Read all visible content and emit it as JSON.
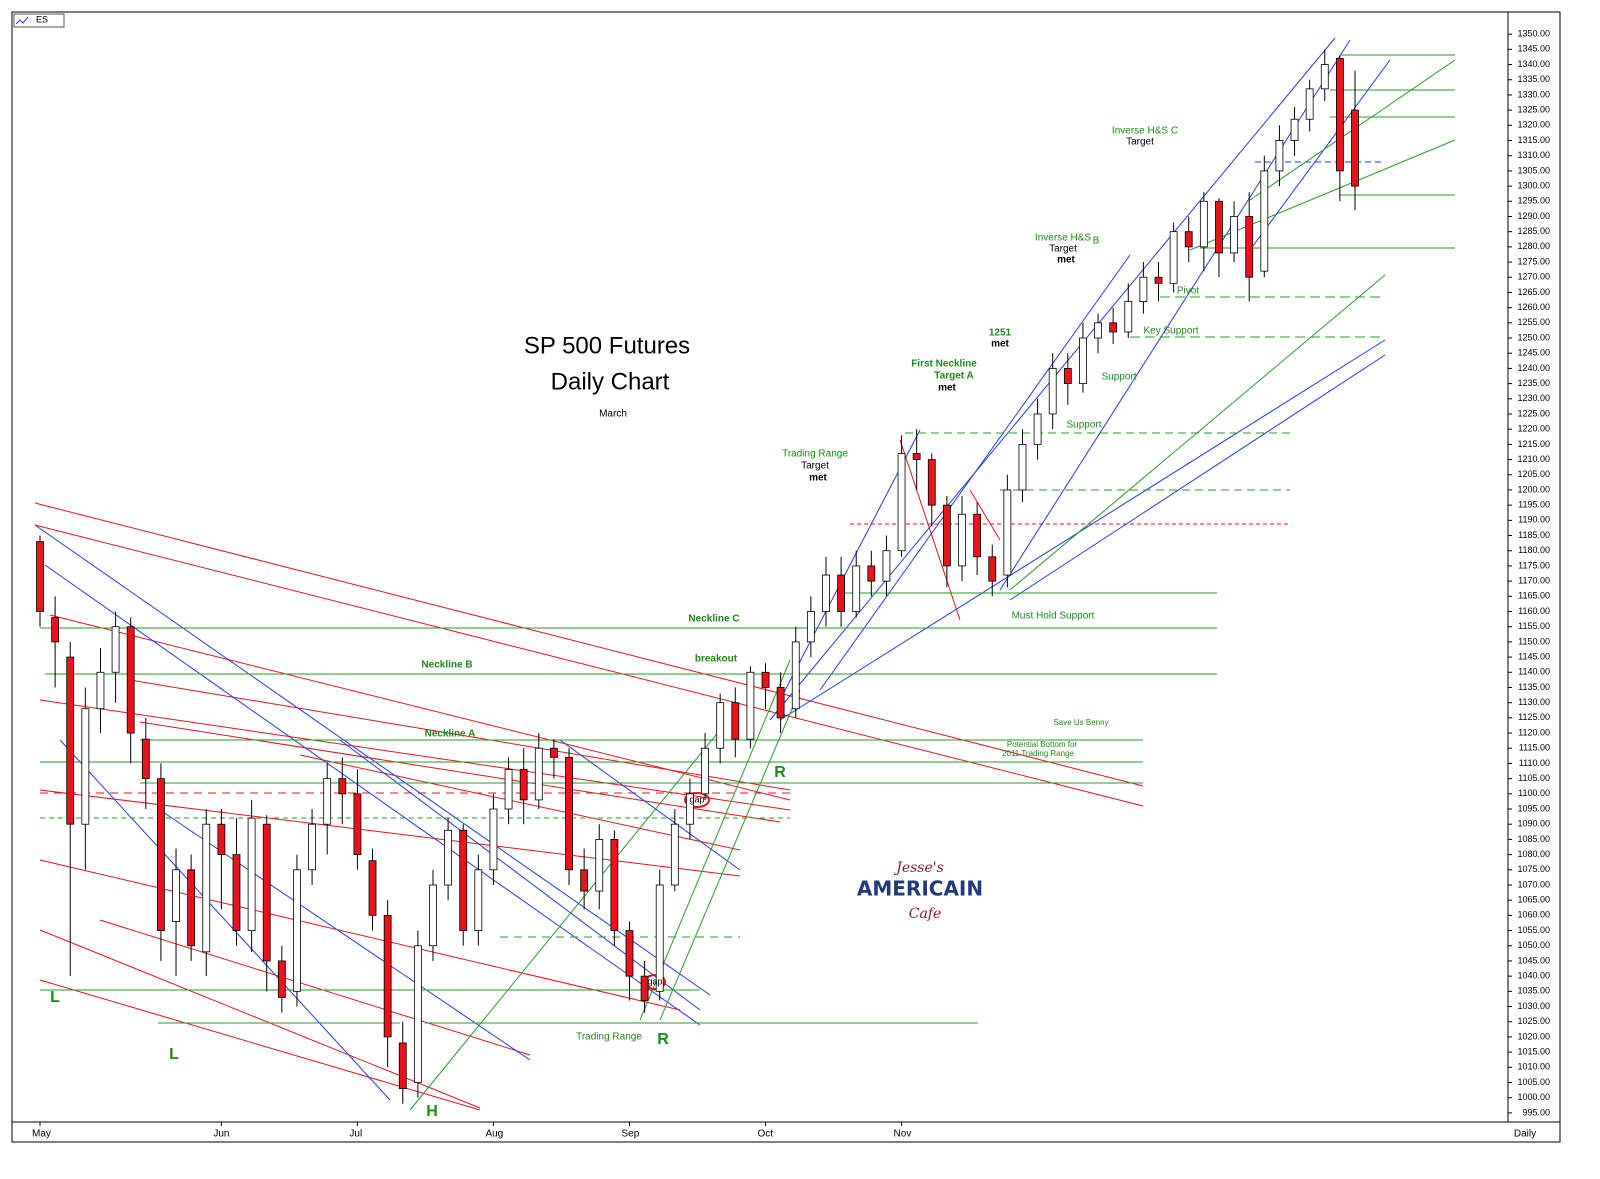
{
  "chart_data": {
    "type": "candlestick",
    "symbol": "ES",
    "period": "Daily",
    "title": "SP 500 Futures",
    "subtitle": "Daily Chart",
    "categories": [
      "May",
      null,
      null,
      null,
      null,
      null,
      null,
      null,
      null,
      null,
      null,
      null,
      "Jun",
      null,
      null,
      null,
      null,
      null,
      null,
      null,
      null,
      "Jul",
      null,
      null,
      null,
      null,
      null,
      null,
      null,
      null,
      "Aug",
      null,
      null,
      null,
      null,
      null,
      null,
      null,
      null,
      "Sep",
      null,
      null,
      null,
      null,
      null,
      null,
      null,
      null,
      "Oct",
      null,
      null,
      null,
      null,
      null,
      null,
      null,
      null,
      "Nov",
      null,
      null,
      null,
      null,
      null,
      null,
      null,
      null,
      null,
      null,
      null,
      null,
      null,
      null,
      null,
      null,
      null,
      null,
      null,
      null,
      null,
      null,
      null,
      null,
      null,
      null,
      null,
      null,
      null,
      null
    ],
    "open": [
      1183,
      1158,
      1145,
      1090,
      1128,
      1140,
      1155,
      1118,
      1105,
      1058,
      1075,
      1048,
      1090,
      1080,
      1055,
      1090,
      1045,
      1035,
      1075,
      1090,
      1105,
      1100,
      1078,
      1060,
      1018,
      1005,
      1050,
      1070,
      1088,
      1055,
      1075,
      1095,
      1108,
      1098,
      1115,
      1112,
      1075,
      1068,
      1085,
      1055,
      1040,
      1035,
      1070,
      1090,
      1100,
      1115,
      1130,
      1118,
      1140,
      1135,
      1128,
      1150,
      1160,
      1172,
      1160,
      1175,
      1170,
      1180,
      1212,
      1210,
      1195,
      1175,
      1192,
      1178,
      1172,
      1200,
      1215,
      1225,
      1240,
      1235,
      1250,
      1255,
      1252,
      1262,
      1270,
      1268,
      1285,
      1280,
      1295,
      1278,
      1290,
      1272,
      1305,
      1315,
      1322,
      1332,
      1342,
      1325
    ],
    "high": [
      1185,
      1165,
      1150,
      1135,
      1148,
      1160,
      1158,
      1125,
      1110,
      1082,
      1080,
      1095,
      1095,
      1092,
      1098,
      1093,
      1050,
      1080,
      1095,
      1110,
      1112,
      1108,
      1082,
      1065,
      1025,
      1055,
      1075,
      1092,
      1090,
      1080,
      1100,
      1112,
      1115,
      1120,
      1118,
      1115,
      1082,
      1090,
      1088,
      1058,
      1045,
      1075,
      1095,
      1105,
      1120,
      1133,
      1135,
      1142,
      1143,
      1140,
      1155,
      1165,
      1178,
      1178,
      1180,
      1180,
      1185,
      1218,
      1220,
      1212,
      1198,
      1198,
      1196,
      1182,
      1205,
      1220,
      1230,
      1245,
      1245,
      1255,
      1258,
      1260,
      1268,
      1275,
      1275,
      1288,
      1290,
      1298,
      1296,
      1295,
      1298,
      1310,
      1320,
      1326,
      1335,
      1345,
      1343,
      1338
    ],
    "low": [
      1155,
      1135,
      1040,
      1075,
      1120,
      1130,
      1110,
      1095,
      1045,
      1040,
      1045,
      1040,
      1062,
      1050,
      1048,
      1035,
      1028,
      1030,
      1070,
      1080,
      1090,
      1075,
      1055,
      1010,
      998,
      1000,
      1045,
      1065,
      1050,
      1050,
      1070,
      1090,
      1090,
      1095,
      1105,
      1070,
      1062,
      1062,
      1050,
      1032,
      1028,
      1032,
      1068,
      1085,
      1098,
      1110,
      1112,
      1115,
      1128,
      1120,
      1125,
      1145,
      1155,
      1155,
      1158,
      1165,
      1165,
      1178,
      1200,
      1188,
      1168,
      1170,
      1172,
      1165,
      1168,
      1196,
      1210,
      1220,
      1228,
      1232,
      1245,
      1248,
      1250,
      1258,
      1262,
      1265,
      1275,
      1272,
      1270,
      1275,
      1262,
      1270,
      1300,
      1310,
      1318,
      1328,
      1295,
      1292
    ],
    "close": [
      1160,
      1150,
      1090,
      1128,
      1140,
      1155,
      1120,
      1105,
      1055,
      1075,
      1050,
      1090,
      1080,
      1055,
      1092,
      1045,
      1033,
      1075,
      1090,
      1105,
      1100,
      1080,
      1060,
      1020,
      1003,
      1050,
      1070,
      1088,
      1055,
      1075,
      1095,
      1108,
      1098,
      1115,
      1112,
      1075,
      1068,
      1085,
      1055,
      1040,
      1032,
      1070,
      1090,
      1100,
      1115,
      1130,
      1118,
      1140,
      1135,
      1125,
      1150,
      1160,
      1172,
      1160,
      1175,
      1170,
      1180,
      1212,
      1210,
      1195,
      1175,
      1192,
      1178,
      1170,
      1200,
      1215,
      1225,
      1240,
      1235,
      1250,
      1255,
      1252,
      1262,
      1270,
      1268,
      1285,
      1280,
      1295,
      1278,
      1290,
      1270,
      1305,
      1315,
      1322,
      1332,
      1340,
      1305,
      1300
    ],
    "up_color": "#ffffff",
    "down_color": "#e8141c",
    "ylim": [
      992,
      1354
    ],
    "yticks": [
      {
        "value": 995,
        "label": "995.00"
      },
      {
        "value": 1000,
        "label": "1000.00"
      },
      {
        "value": 1005,
        "label": "1005.00"
      },
      {
        "value": 1010,
        "label": "1010.00"
      },
      {
        "value": 1015,
        "label": "1015.00"
      },
      {
        "value": 1020,
        "label": "1020.00"
      },
      {
        "value": 1025,
        "label": "1025.00"
      },
      {
        "value": 1030,
        "label": "1030.00"
      },
      {
        "value": 1035,
        "label": "1035.00"
      },
      {
        "value": 1040,
        "label": "1040.00"
      },
      {
        "value": 1045,
        "label": "1045.00"
      },
      {
        "value": 1050,
        "label": "1050.00"
      },
      {
        "value": 1055,
        "label": "1055.00"
      },
      {
        "value": 1060,
        "label": "1060.00"
      },
      {
        "value": 1065,
        "label": "1065.00"
      },
      {
        "value": 1070,
        "label": "1070.00"
      },
      {
        "value": 1075,
        "label": "1075.00"
      },
      {
        "value": 1080,
        "label": "1080.00"
      },
      {
        "value": 1085,
        "label": "1085.00"
      },
      {
        "value": 1090,
        "label": "1090.00"
      },
      {
        "value": 1095,
        "label": "1095.00"
      },
      {
        "value": 1100,
        "label": "1100.00"
      },
      {
        "value": 1105,
        "label": "1105.00"
      },
      {
        "value": 1110,
        "label": "1110.00"
      },
      {
        "value": 1115,
        "label": "1115.00"
      },
      {
        "value": 1120,
        "label": "1120.00"
      },
      {
        "value": 1125,
        "label": "1125.00"
      },
      {
        "value": 1130,
        "label": "1130.00"
      },
      {
        "value": 1135,
        "label": "1135.00"
      },
      {
        "value": 1140,
        "label": "1140.00"
      },
      {
        "value": 1145,
        "label": "1145.00"
      },
      {
        "value": 1150,
        "label": "1150.00"
      },
      {
        "value": 1155,
        "label": "1155.00"
      },
      {
        "value": 1160,
        "label": "1160.00"
      },
      {
        "value": 1165,
        "label": "1165.00"
      },
      {
        "value": 1170,
        "label": "1170.00"
      },
      {
        "value": 1175,
        "label": "1175.00"
      },
      {
        "value": 1180,
        "label": "1180.00"
      },
      {
        "value": 1185,
        "label": "1185.00"
      },
      {
        "value": 1190,
        "label": "1190.00"
      },
      {
        "value": 1195,
        "label": "1195.00"
      },
      {
        "value": 1200,
        "label": "1200.00"
      },
      {
        "value": 1205,
        "label": "1205.00"
      },
      {
        "value": 1210,
        "label": "1210.00"
      },
      {
        "value": 1215,
        "label": "1215.00"
      },
      {
        "value": 1220,
        "label": "1220.00"
      },
      {
        "value": 1225,
        "label": "1225.00"
      },
      {
        "value": 1230,
        "label": "1230.00"
      },
      {
        "value": 1235,
        "label": "1235.00"
      },
      {
        "value": 1240,
        "label": "1240.00"
      },
      {
        "value": 1245,
        "label": "1245.00"
      },
      {
        "value": 1250,
        "label": "1250.00"
      },
      {
        "value": 1255,
        "label": "1255.00"
      },
      {
        "value": 1260,
        "label": "1260.00"
      },
      {
        "value": 1265,
        "label": "1265.00"
      },
      {
        "value": 1270,
        "label": "1270.00"
      },
      {
        "value": 1275,
        "label": "1275.00"
      },
      {
        "value": 1280,
        "label": "1280.00"
      },
      {
        "value": 1285,
        "label": "1285.00"
      },
      {
        "value": 1290,
        "label": "1290.00"
      },
      {
        "value": 1295,
        "label": "1295.00"
      },
      {
        "value": 1300,
        "label": "1300.00"
      },
      {
        "value": 1305,
        "label": "1305.00"
      },
      {
        "value": 1310,
        "label": "1310.00"
      },
      {
        "value": 1315,
        "label": "1315.00"
      },
      {
        "value": 1320,
        "label": "1320.00"
      },
      {
        "value": 1325,
        "label": "1325.00"
      },
      {
        "value": 1330,
        "label": "1330.00"
      },
      {
        "value": 1335,
        "label": "1335.00"
      },
      {
        "value": 1340,
        "label": "1340.00"
      },
      {
        "value": 1345,
        "label": "1345.00"
      },
      {
        "value": 1350,
        "label": "1350.00"
      }
    ],
    "annotations": [
      "March",
      "Inverse H&S  C",
      "Target",
      "Inverse H&S",
      "B",
      "Target",
      "met",
      "Pivot",
      "1251",
      "met",
      "Key Support",
      "First Neckline",
      "Target  A",
      "met",
      "Support",
      "Support",
      "Trading Range",
      "Target",
      "met",
      "Must Hold Support",
      "Neckline  C",
      "breakout",
      "Neckline  B",
      "Neckline  A",
      "Save Us Benny",
      "Potential Bottom for",
      "2011 Trading Range",
      "R",
      "gap",
      "gap",
      "L",
      "L",
      "H",
      "R",
      "Trading Range",
      "Jesse's",
      "AMERICAIN",
      "Cafe"
    ]
  }
}
